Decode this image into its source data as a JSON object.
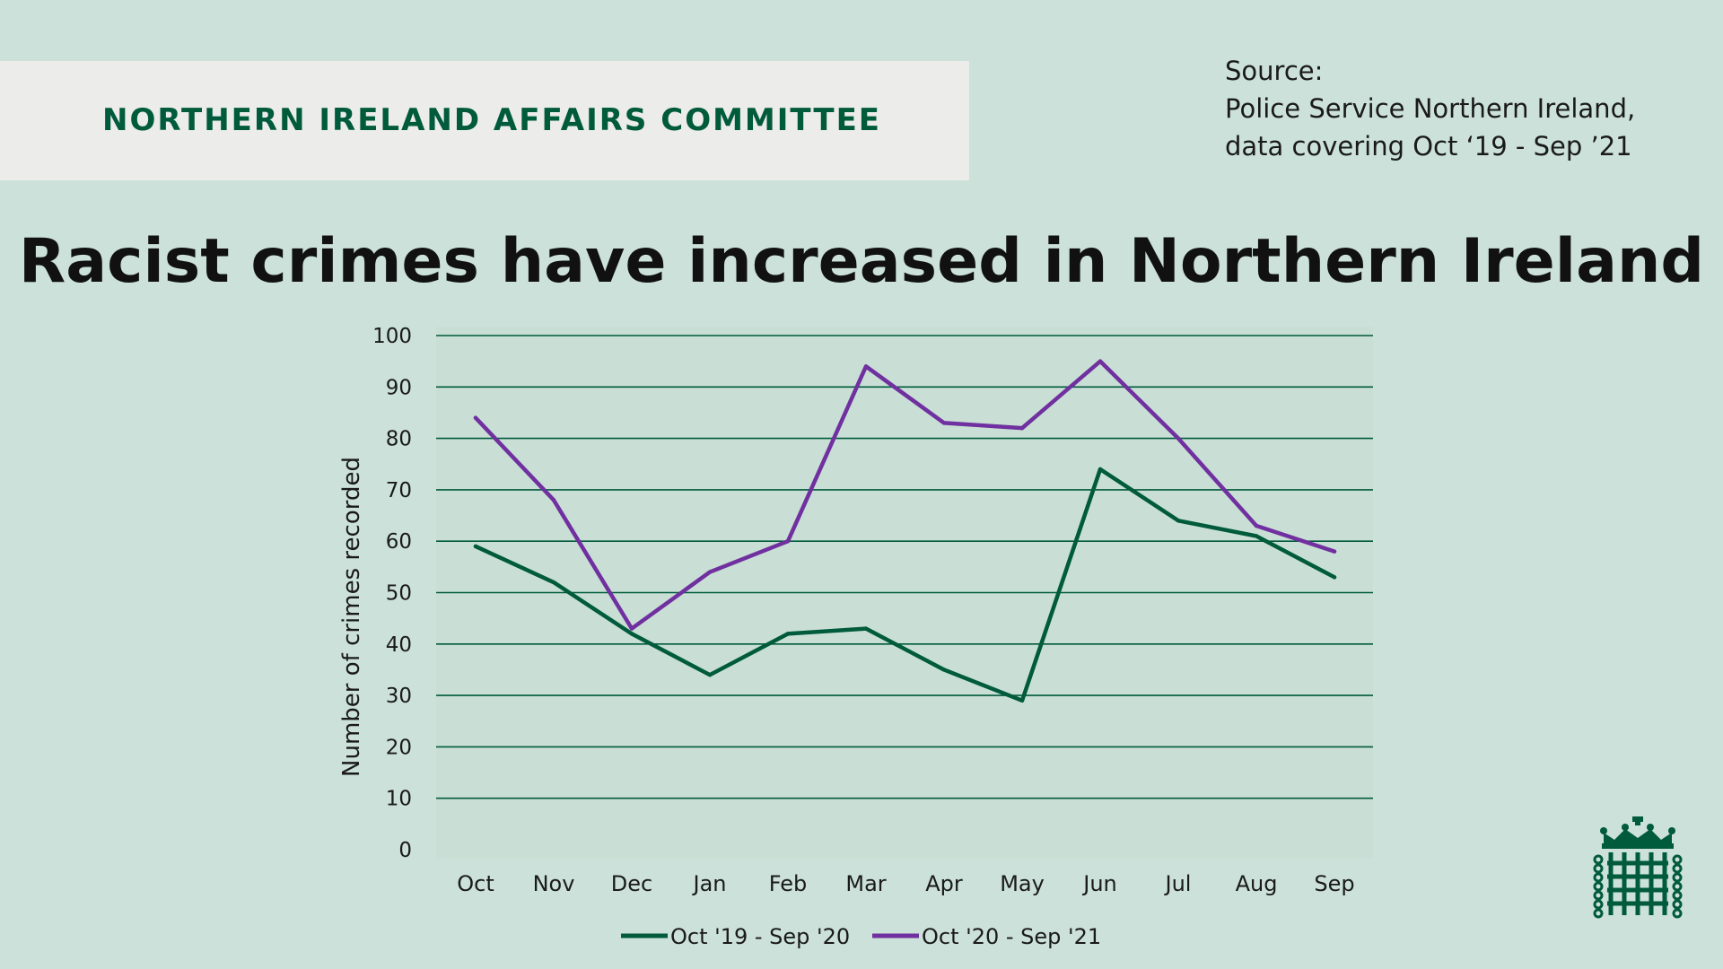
{
  "header": {
    "banner": "NORTHERN IRELAND AFFAIRS COMMITTEE",
    "source_lines": [
      "Source:",
      "Police Service Northern Ireland,",
      "data covering Oct ‘19 - Sep ’21"
    ]
  },
  "colors": {
    "background": "#cbe1d9",
    "banner_bg": "#ececea",
    "brand_green": "#005a3c",
    "series_green": "#005a3c",
    "series_purple": "#7030a0"
  },
  "icons": {
    "logo": "portcullis-icon"
  },
  "chart_data": {
    "type": "line",
    "title": "Racist crimes have increased in Northern Ireland",
    "xlabel": "",
    "ylabel": "Number of crimes recorded",
    "categories": [
      "Oct",
      "Nov",
      "Dec",
      "Jan",
      "Feb",
      "Mar",
      "Apr",
      "May",
      "Jun",
      "Jul",
      "Aug",
      "Sep"
    ],
    "ylim": [
      0,
      100
    ],
    "yticks": [
      0,
      10,
      20,
      30,
      40,
      50,
      60,
      70,
      80,
      90,
      100
    ],
    "grid": true,
    "legend_position": "bottom",
    "series": [
      {
        "name": "Oct '19 - Sep '20",
        "color": "#005a3c",
        "values": [
          59,
          52,
          42,
          34,
          42,
          43,
          35,
          29,
          74,
          64,
          61,
          53
        ]
      },
      {
        "name": "Oct '20 - Sep '21",
        "color": "#7030a0",
        "values": [
          84,
          68,
          43,
          54,
          60,
          94,
          83,
          82,
          95,
          80,
          63,
          58
        ]
      }
    ]
  }
}
